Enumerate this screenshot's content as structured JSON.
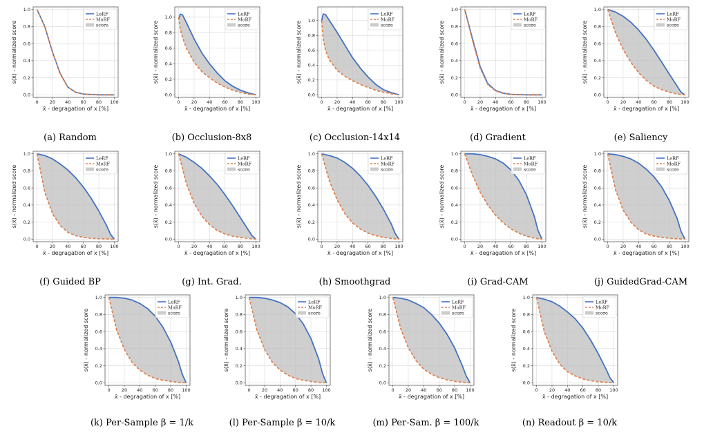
{
  "common": {
    "xlabel": "x̄ - degragation of x [%]",
    "ylabel": "s(x̄) - normalized score",
    "legend": [
      "LeRF",
      "MoRF",
      "score"
    ],
    "colors": {
      "lerf": "#4472c4",
      "morf": "#dd8452",
      "fill": "#bfbfbf"
    }
  },
  "chart_data": [
    {
      "type": "line",
      "caption": "(a) Random",
      "xlim": [
        0,
        100
      ],
      "ylim": [
        0,
        1.0
      ],
      "yticks": [
        0.0,
        0.2,
        0.4,
        0.6,
        0.8,
        1.0
      ],
      "x": [
        0,
        10,
        20,
        30,
        40,
        50,
        60,
        70,
        80,
        90,
        100
      ],
      "series": [
        {
          "name": "LeRF",
          "values": [
            1.0,
            0.8,
            0.5,
            0.25,
            0.09,
            0.03,
            0.01,
            0.003,
            0.0,
            0.0,
            0.0
          ]
        },
        {
          "name": "MoRF",
          "values": [
            1.0,
            0.8,
            0.5,
            0.25,
            0.09,
            0.03,
            0.01,
            0.003,
            0.0,
            0.0,
            0.0
          ]
        }
      ]
    },
    {
      "type": "line",
      "caption": "(b) Occlusion-8x8",
      "xlim": [
        0,
        100
      ],
      "ylim": [
        0,
        1.1
      ],
      "yticks": [
        0.0,
        0.2,
        0.4,
        0.6,
        0.8,
        1.0
      ],
      "x": [
        0,
        2,
        5,
        10,
        20,
        30,
        40,
        50,
        60,
        70,
        80,
        90,
        100
      ],
      "series": [
        {
          "name": "LeRF",
          "values": [
            0.97,
            1.04,
            1.03,
            0.93,
            0.72,
            0.54,
            0.4,
            0.28,
            0.18,
            0.11,
            0.06,
            0.025,
            0.0
          ]
        },
        {
          "name": "MoRF",
          "values": [
            1.0,
            0.85,
            0.74,
            0.6,
            0.42,
            0.3,
            0.22,
            0.15,
            0.1,
            0.06,
            0.03,
            0.01,
            0.0
          ]
        }
      ]
    },
    {
      "type": "line",
      "caption": "(c) Occlusion-14x14",
      "xlim": [
        0,
        100
      ],
      "ylim": [
        0,
        1.15
      ],
      "yticks": [
        0.0,
        0.2,
        0.4,
        0.6,
        0.8,
        1.0
      ],
      "x": [
        0,
        2,
        5,
        10,
        20,
        30,
        40,
        50,
        60,
        70,
        80,
        90,
        100
      ],
      "series": [
        {
          "name": "LeRF",
          "values": [
            1.0,
            1.09,
            1.08,
            1.0,
            0.84,
            0.67,
            0.5,
            0.36,
            0.24,
            0.14,
            0.07,
            0.03,
            0.0
          ]
        },
        {
          "name": "MoRF",
          "values": [
            1.0,
            0.75,
            0.6,
            0.47,
            0.33,
            0.25,
            0.19,
            0.14,
            0.1,
            0.06,
            0.035,
            0.015,
            0.0
          ]
        }
      ]
    },
    {
      "type": "line",
      "caption": "(d) Gradient",
      "xlim": [
        0,
        100
      ],
      "ylim": [
        0,
        1.0
      ],
      "yticks": [
        0.0,
        0.2,
        0.4,
        0.6,
        0.8,
        1.0
      ],
      "x": [
        0,
        10,
        20,
        30,
        40,
        50,
        60,
        70,
        80,
        90,
        100
      ],
      "series": [
        {
          "name": "LeRF",
          "values": [
            1.0,
            0.66,
            0.33,
            0.13,
            0.05,
            0.02,
            0.006,
            0.002,
            0.0,
            0.0,
            0.0
          ]
        },
        {
          "name": "MoRF",
          "values": [
            1.0,
            0.64,
            0.31,
            0.12,
            0.045,
            0.016,
            0.005,
            0.001,
            0.0,
            0.0,
            0.0
          ]
        }
      ]
    },
    {
      "type": "line",
      "caption": "(e) Saliency",
      "xlim": [
        0,
        100
      ],
      "ylim": [
        0,
        1.0
      ],
      "yticks": [
        0.0,
        0.2,
        0.4,
        0.6,
        0.8,
        1.0
      ],
      "x": [
        0,
        10,
        20,
        30,
        40,
        50,
        60,
        70,
        80,
        90,
        95,
        100
      ],
      "series": [
        {
          "name": "LeRF",
          "values": [
            1.0,
            0.97,
            0.92,
            0.85,
            0.76,
            0.65,
            0.52,
            0.38,
            0.24,
            0.1,
            0.03,
            0.0
          ]
        },
        {
          "name": "MoRF",
          "values": [
            1.0,
            0.73,
            0.53,
            0.38,
            0.26,
            0.17,
            0.1,
            0.06,
            0.03,
            0.01,
            0.003,
            0.0
          ]
        }
      ]
    },
    {
      "type": "line",
      "caption": "(f) Guided BP",
      "xlim": [
        0,
        100
      ],
      "ylim": [
        0,
        1.0
      ],
      "yticks": [
        0.0,
        0.2,
        0.4,
        0.6,
        0.8,
        1.0
      ],
      "x": [
        0,
        10,
        20,
        30,
        40,
        50,
        60,
        70,
        80,
        90,
        95,
        100
      ],
      "series": [
        {
          "name": "LeRF",
          "values": [
            1.0,
            0.98,
            0.94,
            0.88,
            0.81,
            0.72,
            0.61,
            0.48,
            0.33,
            0.16,
            0.06,
            0.0
          ]
        },
        {
          "name": "MoRF",
          "values": [
            1.0,
            0.55,
            0.3,
            0.16,
            0.08,
            0.04,
            0.02,
            0.01,
            0.005,
            0.002,
            0.001,
            0.0
          ]
        }
      ]
    },
    {
      "type": "line",
      "caption": "(g) Int. Grad.",
      "xlim": [
        0,
        100
      ],
      "ylim": [
        0,
        1.0
      ],
      "yticks": [
        0.0,
        0.2,
        0.4,
        0.6,
        0.8,
        1.0
      ],
      "x": [
        0,
        10,
        20,
        30,
        40,
        50,
        60,
        70,
        80,
        90,
        95,
        100
      ],
      "series": [
        {
          "name": "LeRF",
          "values": [
            1.0,
            0.96,
            0.9,
            0.83,
            0.74,
            0.64,
            0.52,
            0.39,
            0.25,
            0.11,
            0.04,
            0.0
          ]
        },
        {
          "name": "MoRF",
          "values": [
            1.0,
            0.65,
            0.42,
            0.27,
            0.17,
            0.1,
            0.06,
            0.035,
            0.02,
            0.008,
            0.003,
            0.0
          ]
        }
      ]
    },
    {
      "type": "line",
      "caption": "(h) Smoothgrad",
      "xlim": [
        0,
        100
      ],
      "ylim": [
        0,
        1.0
      ],
      "yticks": [
        0.0,
        0.2,
        0.4,
        0.6,
        0.8,
        1.0
      ],
      "x": [
        0,
        10,
        20,
        30,
        40,
        50,
        60,
        70,
        80,
        90,
        95,
        100
      ],
      "series": [
        {
          "name": "LeRF",
          "values": [
            1.0,
            0.98,
            0.95,
            0.9,
            0.83,
            0.74,
            0.63,
            0.5,
            0.35,
            0.18,
            0.07,
            0.0
          ]
        },
        {
          "name": "MoRF",
          "values": [
            1.0,
            0.68,
            0.46,
            0.3,
            0.19,
            0.12,
            0.07,
            0.04,
            0.02,
            0.008,
            0.003,
            0.0
          ]
        }
      ]
    },
    {
      "type": "line",
      "caption": "(i) Grad-CAM",
      "xlim": [
        0,
        100
      ],
      "ylim": [
        0,
        1.0
      ],
      "yticks": [
        0.0,
        0.2,
        0.4,
        0.6,
        0.8,
        1.0
      ],
      "x": [
        0,
        10,
        20,
        30,
        40,
        50,
        60,
        70,
        80,
        90,
        95,
        100
      ],
      "series": [
        {
          "name": "LeRF",
          "values": [
            1.0,
            1.0,
            0.99,
            0.97,
            0.94,
            0.89,
            0.81,
            0.69,
            0.52,
            0.27,
            0.1,
            0.0
          ]
        },
        {
          "name": "MoRF",
          "values": [
            1.0,
            0.75,
            0.55,
            0.4,
            0.28,
            0.19,
            0.12,
            0.07,
            0.035,
            0.012,
            0.004,
            0.0
          ]
        }
      ]
    },
    {
      "type": "line",
      "caption": "(j) GuidedGrad-CAM",
      "xlim": [
        0,
        100
      ],
      "ylim": [
        0,
        1.0
      ],
      "yticks": [
        0.0,
        0.2,
        0.4,
        0.6,
        0.8,
        1.0
      ],
      "x": [
        0,
        10,
        20,
        30,
        40,
        50,
        60,
        70,
        80,
        90,
        95,
        100
      ],
      "series": [
        {
          "name": "LeRF",
          "values": [
            1.0,
            0.99,
            0.97,
            0.94,
            0.89,
            0.82,
            0.73,
            0.61,
            0.45,
            0.24,
            0.09,
            0.0
          ]
        },
        {
          "name": "MoRF",
          "values": [
            1.0,
            0.58,
            0.34,
            0.2,
            0.11,
            0.06,
            0.035,
            0.02,
            0.01,
            0.004,
            0.002,
            0.0
          ]
        }
      ]
    },
    {
      "type": "line",
      "caption": "(k) Per-Sample β = 1/k",
      "xlim": [
        0,
        100
      ],
      "ylim": [
        0,
        1.0
      ],
      "yticks": [
        0.0,
        0.2,
        0.4,
        0.6,
        0.8,
        1.0
      ],
      "x": [
        0,
        10,
        20,
        30,
        40,
        50,
        60,
        70,
        80,
        90,
        95,
        100
      ],
      "series": [
        {
          "name": "LeRF",
          "values": [
            1.0,
            1.0,
            0.99,
            0.97,
            0.93,
            0.87,
            0.78,
            0.65,
            0.48,
            0.25,
            0.1,
            0.0
          ]
        },
        {
          "name": "MoRF",
          "values": [
            1.0,
            0.62,
            0.39,
            0.24,
            0.15,
            0.09,
            0.05,
            0.03,
            0.015,
            0.006,
            0.002,
            0.0
          ]
        }
      ]
    },
    {
      "type": "line",
      "caption": "(l) Per-Sample β = 10/k",
      "xlim": [
        0,
        100
      ],
      "ylim": [
        0,
        1.0
      ],
      "yticks": [
        0.0,
        0.2,
        0.4,
        0.6,
        0.8,
        1.0
      ],
      "x": [
        0,
        10,
        20,
        30,
        40,
        50,
        60,
        70,
        80,
        90,
        95,
        100
      ],
      "series": [
        {
          "name": "LeRF",
          "values": [
            1.0,
            1.0,
            0.99,
            0.97,
            0.94,
            0.89,
            0.81,
            0.69,
            0.52,
            0.28,
            0.11,
            0.0
          ]
        },
        {
          "name": "MoRF",
          "values": [
            1.0,
            0.62,
            0.39,
            0.24,
            0.15,
            0.09,
            0.05,
            0.03,
            0.015,
            0.006,
            0.002,
            0.0
          ]
        }
      ]
    },
    {
      "type": "line",
      "caption": "(m) Per-Sam. β = 100/k",
      "xlim": [
        0,
        100
      ],
      "ylim": [
        0,
        1.0
      ],
      "yticks": [
        0.0,
        0.2,
        0.4,
        0.6,
        0.8,
        1.0
      ],
      "x": [
        0,
        10,
        20,
        30,
        40,
        50,
        60,
        70,
        80,
        90,
        95,
        100
      ],
      "series": [
        {
          "name": "LeRF",
          "values": [
            1.0,
            0.99,
            0.97,
            0.93,
            0.88,
            0.8,
            0.7,
            0.57,
            0.41,
            0.2,
            0.08,
            0.0
          ]
        },
        {
          "name": "MoRF",
          "values": [
            1.0,
            0.64,
            0.41,
            0.26,
            0.16,
            0.1,
            0.06,
            0.035,
            0.018,
            0.007,
            0.003,
            0.0
          ]
        }
      ]
    },
    {
      "type": "line",
      "caption": "(n) Readout β = 10/k",
      "xlim": [
        0,
        100
      ],
      "ylim": [
        0,
        1.0
      ],
      "yticks": [
        0.0,
        0.2,
        0.4,
        0.6,
        0.8,
        1.0
      ],
      "x": [
        0,
        10,
        20,
        30,
        40,
        50,
        60,
        70,
        80,
        90,
        95,
        100
      ],
      "series": [
        {
          "name": "LeRF",
          "values": [
            1.0,
            0.98,
            0.95,
            0.9,
            0.83,
            0.75,
            0.64,
            0.5,
            0.34,
            0.16,
            0.06,
            0.0
          ]
        },
        {
          "name": "MoRF",
          "values": [
            1.0,
            0.6,
            0.37,
            0.22,
            0.13,
            0.08,
            0.045,
            0.025,
            0.012,
            0.005,
            0.002,
            0.0
          ]
        }
      ]
    }
  ]
}
